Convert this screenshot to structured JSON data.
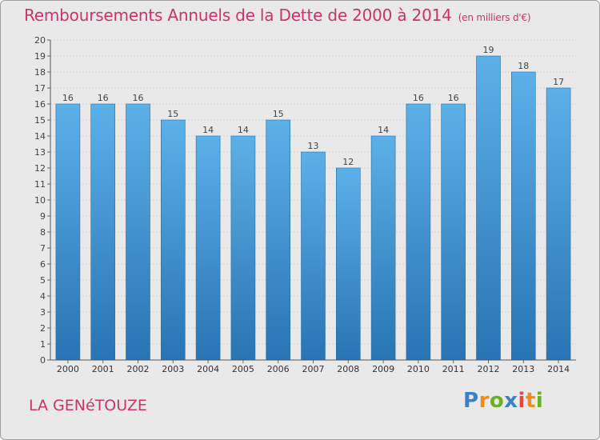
{
  "title": "Remboursements Annuels de la Dette de 2000 à 2014",
  "title_unit": "(en milliers d'€)",
  "commune": "LA GENéTOUZE",
  "logo": {
    "letters": [
      "P",
      "r",
      "o",
      "x",
      "i",
      "t",
      "i"
    ],
    "colors": [
      "#3a82c4",
      "#f08c1e",
      "#6ab023",
      "#3a82c4",
      "#e8463a",
      "#f08c1e",
      "#6ab023"
    ]
  },
  "chart_data": {
    "type": "bar",
    "title": "Remboursements Annuels de la Dette de 2000 à 2014",
    "unit": "(en milliers d'€)",
    "xlabel": "",
    "ylabel": "",
    "ylim": [
      0,
      20
    ],
    "yticks": [
      0,
      1,
      2,
      3,
      4,
      5,
      6,
      7,
      8,
      9,
      10,
      11,
      12,
      13,
      14,
      15,
      16,
      17,
      18,
      19,
      20
    ],
    "grid": true,
    "categories": [
      "2000",
      "2001",
      "2002",
      "2003",
      "2004",
      "2005",
      "2006",
      "2007",
      "2008",
      "2009",
      "2010",
      "2011",
      "2012",
      "2013",
      "2014"
    ],
    "values": [
      16,
      16,
      16,
      15,
      14,
      14,
      15,
      13,
      12,
      14,
      16,
      16,
      19,
      18,
      17
    ],
    "data_labels": true,
    "bar_color_top": "#5aaee6",
    "bar_color_bottom": "#2a78b8"
  }
}
